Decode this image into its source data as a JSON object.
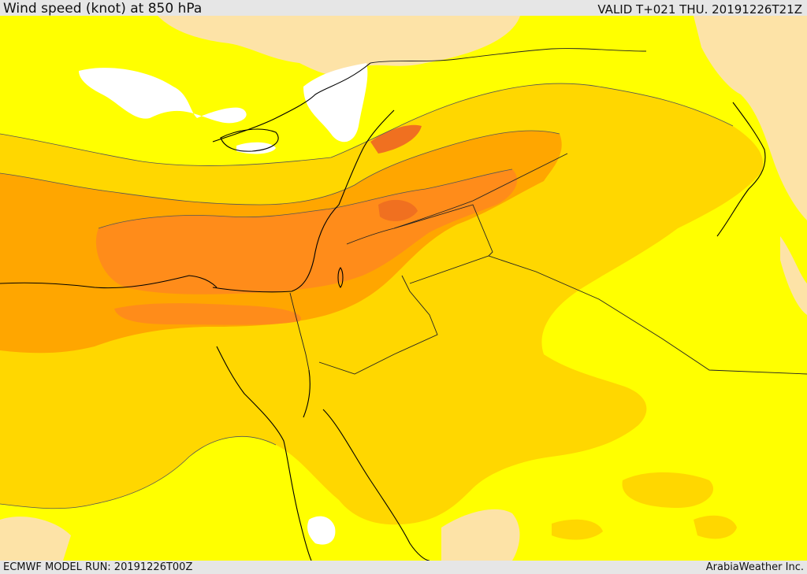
{
  "header": {
    "title": "Wind speed (knot) at 850 hPa",
    "valid": "VALID T+021 THU. 20191226T21Z"
  },
  "footer": {
    "model_run": "ECMWF MODEL RUN: 20191226T00Z",
    "credit": "ArabiaWeather Inc."
  },
  "map": {
    "region": "Eastern Mediterranean / Levant",
    "variable": "wind speed at 850 hPa",
    "fill_colors": {
      "calm": "#ffffff",
      "light": "#fde3a7",
      "low": "#ffff00",
      "moderate": "#ffd700",
      "strong": "#ffa600",
      "very_strong": "#ff8c1a",
      "peak": "#f07020"
    },
    "line_colors": {
      "coast": "#000000",
      "border": "#222222",
      "contour": "#555555"
    }
  }
}
